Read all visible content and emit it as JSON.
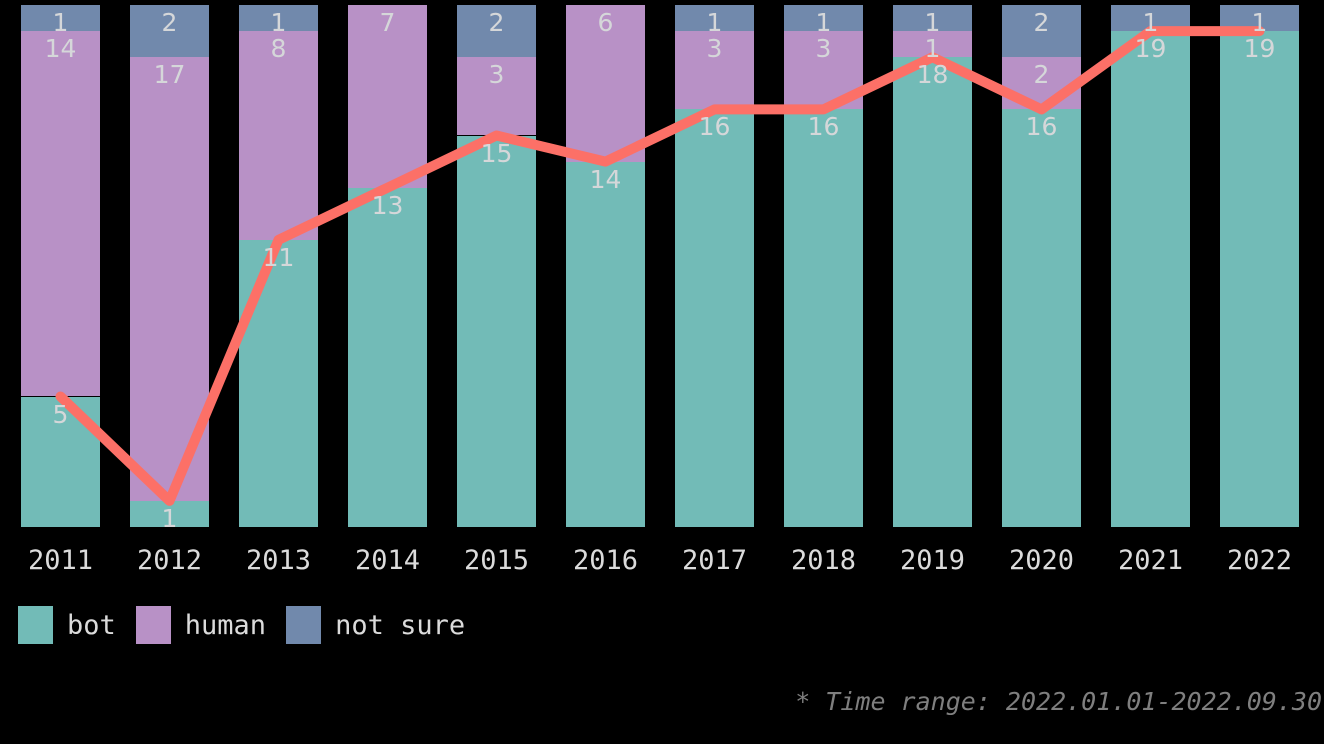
{
  "chart_data": {
    "type": "bar",
    "stacked": true,
    "orientation": "vertical",
    "categories": [
      "2011",
      "2012",
      "2013",
      "2014",
      "2015",
      "2016",
      "2017",
      "2018",
      "2019",
      "2020",
      "2021",
      "2022"
    ],
    "series": [
      {
        "name": "bot",
        "color": "#72bbb7",
        "values": [
          5,
          1,
          11,
          13,
          15,
          14,
          16,
          16,
          18,
          16,
          19,
          19
        ]
      },
      {
        "name": "human",
        "color": "#b891c6",
        "values": [
          14,
          17,
          8,
          7,
          3,
          6,
          3,
          3,
          1,
          2,
          0,
          0
        ]
      },
      {
        "name": "not sure",
        "color": "#7189ac",
        "values": [
          1,
          2,
          1,
          0,
          2,
          0,
          1,
          1,
          1,
          2,
          1,
          1
        ]
      }
    ],
    "line_overlay": {
      "name": "bot",
      "color": "#fc7067",
      "stroke_width": 10,
      "values": [
        5,
        1,
        11,
        13,
        15,
        14,
        16,
        16,
        18,
        16,
        19,
        19
      ]
    },
    "ylim": [
      0,
      20
    ],
    "bar_total_per_category": 20,
    "value_labels_shown": true,
    "grid": false,
    "legend_position": "bottom-left",
    "legend": [
      "bot",
      "human",
      "not sure"
    ],
    "annotation": "* Time range: 2022.01.01-2022.09.30"
  },
  "colors": {
    "background": "#000000",
    "segment_label": "#d5d7d9",
    "axis_label": "#dbdbdb",
    "note": "#7f7f7f"
  }
}
